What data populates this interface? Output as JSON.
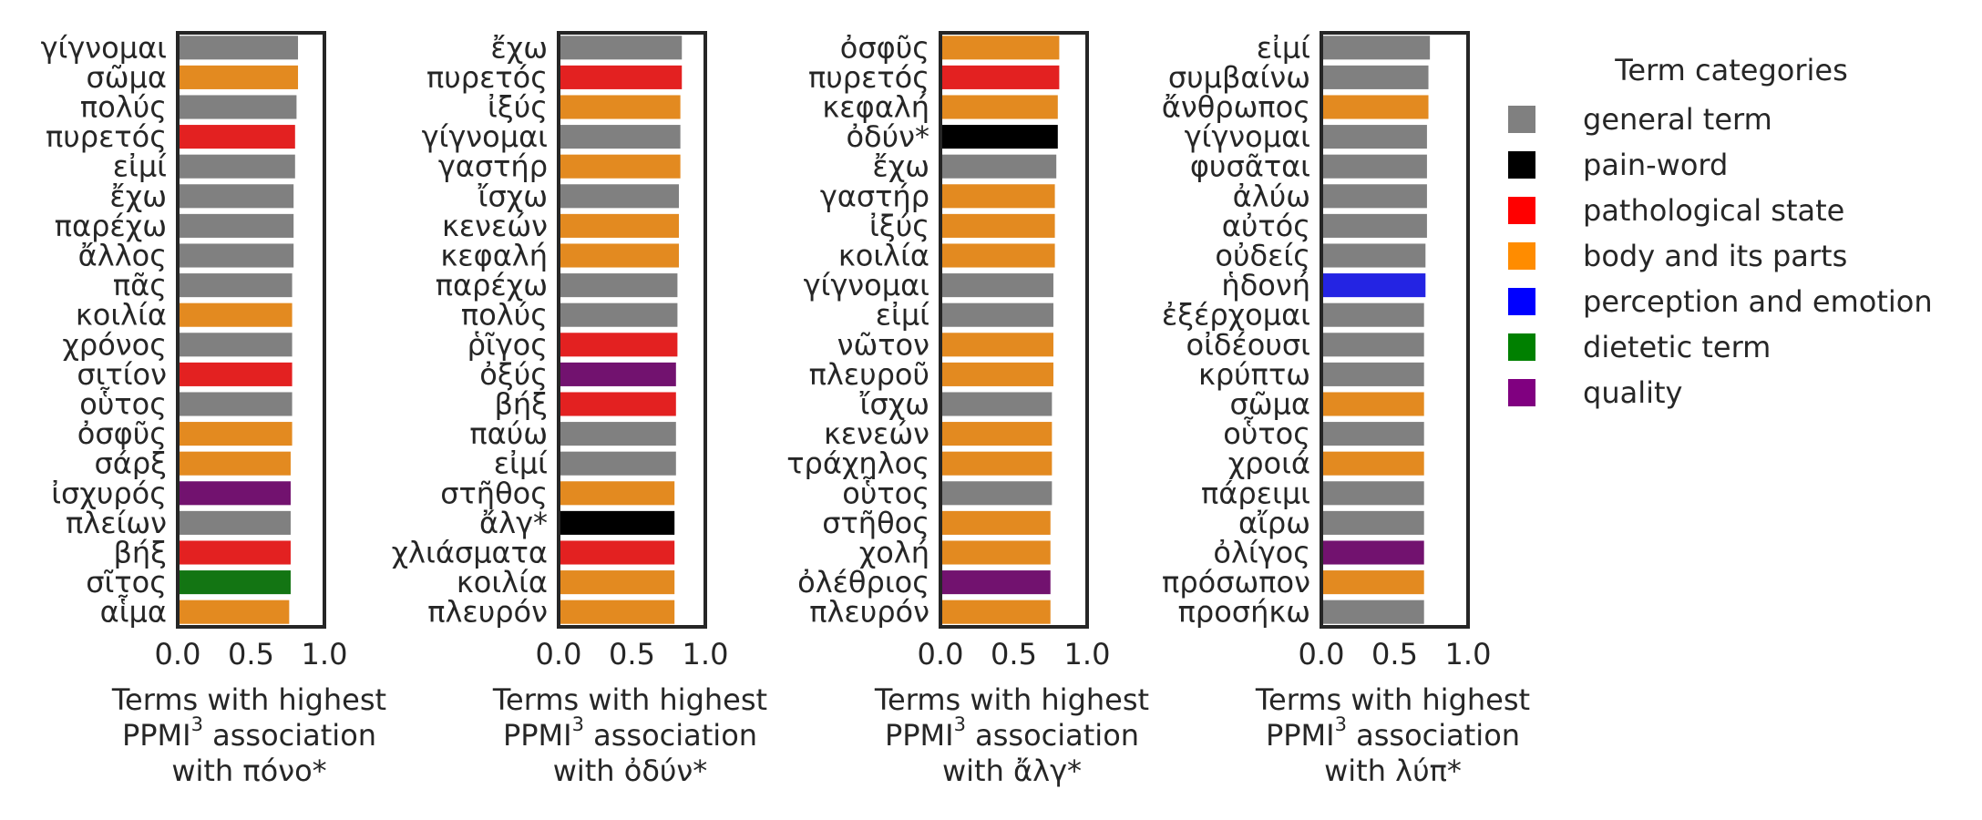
{
  "legend": {
    "title": "Term categories",
    "items": [
      {
        "key": "general",
        "label": "general term",
        "color": "#808080"
      },
      {
        "key": "pain",
        "label": "pain-word",
        "color": "#000000"
      },
      {
        "key": "pathological",
        "label": "pathological state",
        "color": "#ff0000"
      },
      {
        "key": "body",
        "label": "body and its parts",
        "color": "#ff8c00"
      },
      {
        "key": "perception",
        "label": "perception and emotion",
        "color": "#0000ff"
      },
      {
        "key": "dietetic",
        "label": "dietetic term",
        "color": "#008000"
      },
      {
        "key": "quality",
        "label": "quality",
        "color": "#800080"
      }
    ]
  },
  "bar_colors": {
    "general": "#808080",
    "pain": "#000000",
    "pathological": "#e32121",
    "body": "#e38a20",
    "perception": "#2424e3",
    "dietetic": "#137513",
    "quality": "#72126f"
  },
  "chart_data": [
    {
      "type": "bar",
      "orientation": "horizontal",
      "title_lines": [
        "Terms with highest",
        "association",
        "with πόνο*"
      ],
      "title_prefix": "PPMI",
      "title_sup": "3",
      "xlim": [
        0.0,
        1.0
      ],
      "xticks": [
        "0.0",
        "0.5",
        "1.0"
      ],
      "grid": false,
      "categories": [
        "γίγνομαι",
        "σῶμα",
        "πολύς",
        "πυρετός",
        "εἰμί",
        "ἔχω",
        "παρέχω",
        "ἄλλος",
        "πᾶς",
        "κοιλία",
        "χρόνος",
        "σιτίον",
        "οὗτος",
        "ὀσφῦς",
        "σάρξ",
        "ἰσχυρός",
        "πλείων",
        "βήξ",
        "σῖτος",
        "αἷμα"
      ],
      "values": [
        0.82,
        0.82,
        0.81,
        0.8,
        0.8,
        0.79,
        0.79,
        0.79,
        0.78,
        0.78,
        0.78,
        0.78,
        0.78,
        0.78,
        0.77,
        0.77,
        0.77,
        0.77,
        0.77,
        0.76
      ],
      "groups": [
        "general",
        "body",
        "general",
        "pathological",
        "general",
        "general",
        "general",
        "general",
        "general",
        "body",
        "general",
        "pathological",
        "general",
        "body",
        "body",
        "quality",
        "general",
        "pathological",
        "dietetic",
        "body"
      ]
    },
    {
      "type": "bar",
      "orientation": "horizontal",
      "title_lines": [
        "Terms with highest",
        "association",
        "with ὀδύν*"
      ],
      "title_prefix": "PPMI",
      "title_sup": "3",
      "xlim": [
        0.0,
        1.0
      ],
      "xticks": [
        "0.0",
        "0.5",
        "1.0"
      ],
      "grid": false,
      "categories": [
        "ἔχω",
        "πυρετός",
        "ἰξύς",
        "γίγνομαι",
        "γαστήρ",
        "ἴσχω",
        "κενεών",
        "κεφαλή",
        "παρέχω",
        "πολύς",
        "ῥῖγος",
        "ὀξύς",
        "βήξ",
        "παύω",
        "εἰμί",
        "στῆθος",
        "ἄλγ*",
        "χλιάσματα",
        "κοιλία",
        "πλευρόν"
      ],
      "values": [
        0.84,
        0.84,
        0.83,
        0.83,
        0.83,
        0.82,
        0.82,
        0.82,
        0.81,
        0.81,
        0.81,
        0.8,
        0.8,
        0.8,
        0.8,
        0.79,
        0.79,
        0.79,
        0.79,
        0.79
      ],
      "groups": [
        "general",
        "pathological",
        "body",
        "general",
        "body",
        "general",
        "body",
        "body",
        "general",
        "general",
        "pathological",
        "quality",
        "pathological",
        "general",
        "general",
        "body",
        "pain",
        "pathological",
        "body",
        "body"
      ]
    },
    {
      "type": "bar",
      "orientation": "horizontal",
      "title_lines": [
        "Terms with highest",
        "association",
        "with ἄλγ*"
      ],
      "title_prefix": "PPMI",
      "title_sup": "3",
      "xlim": [
        0.0,
        1.0
      ],
      "xticks": [
        "0.0",
        "0.5",
        "1.0"
      ],
      "grid": false,
      "categories": [
        "ὀσφῦς",
        "πυρετός",
        "κεφαλή",
        "ὀδύν*",
        "ἔχω",
        "γαστήρ",
        "ἰξύς",
        "κοιλία",
        "γίγνομαι",
        "εἰμί",
        "νῶτον",
        "πλευροῦ",
        "ἴσχω",
        "κενεών",
        "τράχηλος",
        "οὗτος",
        "στῆθος",
        "χολή",
        "ὀλέθριος",
        "πλευρόν"
      ],
      "values": [
        0.81,
        0.81,
        0.8,
        0.8,
        0.79,
        0.78,
        0.78,
        0.78,
        0.77,
        0.77,
        0.77,
        0.77,
        0.76,
        0.76,
        0.76,
        0.76,
        0.75,
        0.75,
        0.75,
        0.75
      ],
      "groups": [
        "body",
        "pathological",
        "body",
        "pain",
        "general",
        "body",
        "body",
        "body",
        "general",
        "general",
        "body",
        "body",
        "general",
        "body",
        "body",
        "general",
        "body",
        "body",
        "quality",
        "body"
      ]
    },
    {
      "type": "bar",
      "orientation": "horizontal",
      "title_lines": [
        "Terms with highest",
        "association",
        "with λύπ*"
      ],
      "title_prefix": "PPMI",
      "title_sup": "3",
      "xlim": [
        0.0,
        1.0
      ],
      "xticks": [
        "0.0",
        "0.5",
        "1.0"
      ],
      "grid": false,
      "categories": [
        "εἰμί",
        "συμβαίνω",
        "ἄνθρωπος",
        "γίγνομαι",
        "φυσᾶται",
        "ἀλύω",
        "αὐτός",
        "οὐδείς",
        "ἡδονή",
        "ἐξέρχομαι",
        "οἰδέουσι",
        "κρύπτω",
        "σῶμα",
        "οὗτος",
        "χροιά",
        "πάρειμι",
        "αἴρω",
        "ὀλίγος",
        "πρόσωπον",
        "προσήκω"
      ],
      "values": [
        0.74,
        0.73,
        0.73,
        0.72,
        0.72,
        0.72,
        0.72,
        0.71,
        0.71,
        0.7,
        0.7,
        0.7,
        0.7,
        0.7,
        0.7,
        0.7,
        0.7,
        0.7,
        0.7,
        0.7
      ],
      "groups": [
        "general",
        "general",
        "body",
        "general",
        "general",
        "general",
        "general",
        "general",
        "perception",
        "general",
        "general",
        "general",
        "body",
        "general",
        "body",
        "general",
        "general",
        "quality",
        "body",
        "general"
      ]
    }
  ]
}
